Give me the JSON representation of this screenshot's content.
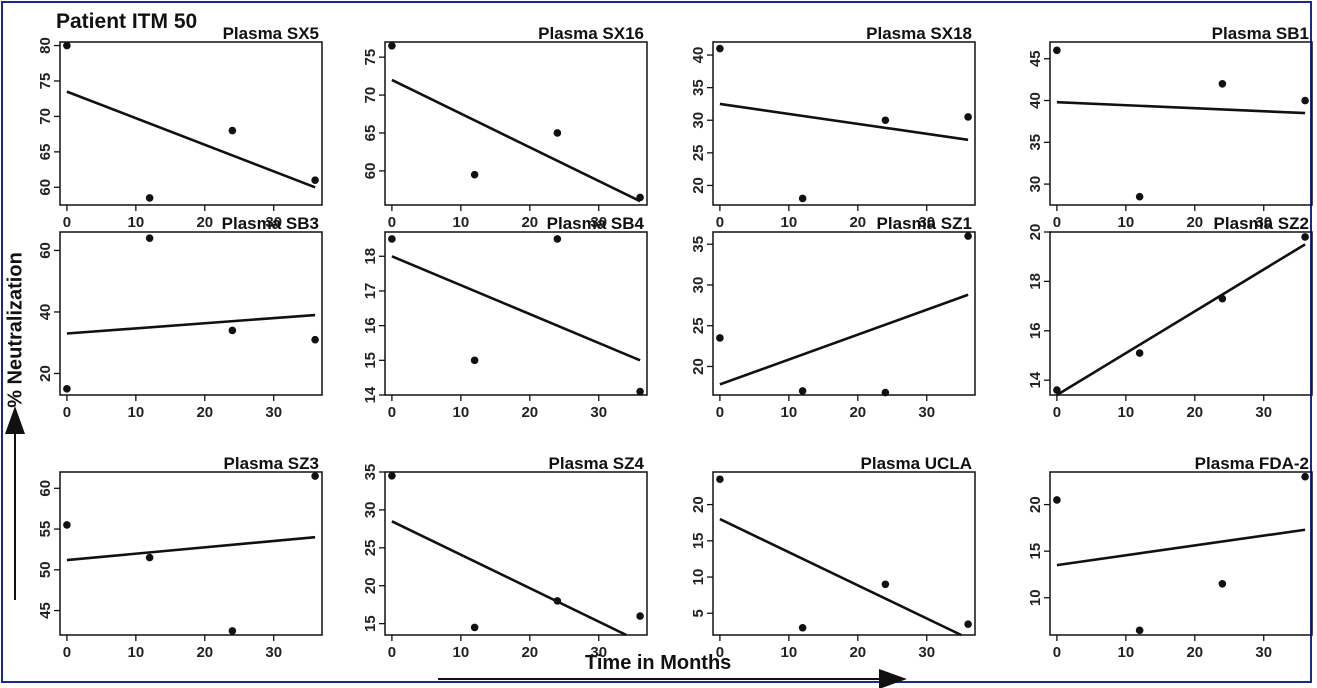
{
  "figure": {
    "title": "Patient ITM 50",
    "ylabel": "% Neutralization",
    "xlabel": "Time in Months",
    "colors": {
      "border": "#1b2a8a",
      "ink": "#111111"
    }
  },
  "chart_data": [
    {
      "type": "scatter",
      "title": "Plasma SX5",
      "x": [
        0,
        12,
        24,
        36
      ],
      "y": [
        80,
        58.5,
        68,
        61
      ],
      "fit": [
        [
          0,
          73.5
        ],
        [
          36,
          60
        ]
      ],
      "xlim": [
        -1,
        37
      ],
      "ylim": [
        57.5,
        80.5
      ],
      "xticks": [
        0,
        10,
        20,
        30
      ],
      "yticks": [
        60,
        65,
        70,
        75,
        80
      ]
    },
    {
      "type": "scatter",
      "title": "Plasma SX16",
      "x": [
        0,
        12,
        24,
        36
      ],
      "y": [
        76.5,
        59.5,
        65,
        56.5
      ],
      "fit": [
        [
          0,
          72
        ],
        [
          36,
          56
        ]
      ],
      "xlim": [
        -1,
        37
      ],
      "ylim": [
        55.5,
        77
      ],
      "xticks": [
        0,
        10,
        20,
        30
      ],
      "yticks": [
        60,
        65,
        70,
        75
      ]
    },
    {
      "type": "scatter",
      "title": "Plasma SX18",
      "x": [
        0,
        12,
        24,
        36
      ],
      "y": [
        41,
        18,
        30,
        30.5
      ],
      "fit": [
        [
          0,
          32.5
        ],
        [
          36,
          27
        ]
      ],
      "xlim": [
        -1,
        37
      ],
      "ylim": [
        17,
        42
      ],
      "xticks": [
        0,
        10,
        20,
        30
      ],
      "yticks": [
        20,
        25,
        30,
        35,
        40
      ]
    },
    {
      "type": "scatter",
      "title": "Plasma SB1",
      "x": [
        0,
        12,
        24,
        36
      ],
      "y": [
        46,
        28.5,
        42,
        40
      ],
      "fit": [
        [
          0,
          39.8
        ],
        [
          36,
          38.5
        ]
      ],
      "xlim": [
        -1,
        37
      ],
      "ylim": [
        27.5,
        47
      ],
      "xticks": [
        0,
        10,
        20,
        30
      ],
      "yticks": [
        30,
        35,
        40,
        45
      ]
    },
    {
      "type": "scatter",
      "title": "Plasma SB3",
      "x": [
        0,
        12,
        24,
        36
      ],
      "y": [
        15,
        64,
        34,
        31
      ],
      "fit": [
        [
          0,
          33
        ],
        [
          36,
          39
        ]
      ],
      "xlim": [
        -1,
        37
      ],
      "ylim": [
        13,
        66
      ],
      "xticks": [
        0,
        10,
        20,
        30
      ],
      "yticks": [
        20,
        40,
        60
      ]
    },
    {
      "type": "scatter",
      "title": "Plasma SB4",
      "x": [
        0,
        12,
        24,
        36
      ],
      "y": [
        18.5,
        15,
        18.5,
        14.1
      ],
      "fit": [
        [
          0,
          18
        ],
        [
          36,
          15
        ]
      ],
      "xlim": [
        -1,
        37
      ],
      "ylim": [
        14,
        18.7
      ],
      "xticks": [
        0,
        10,
        20,
        30
      ],
      "yticks": [
        14,
        15,
        16,
        17,
        18
      ]
    },
    {
      "type": "scatter",
      "title": "Plasma SZ1",
      "x": [
        0,
        12,
        24,
        36
      ],
      "y": [
        23.5,
        17,
        16.8,
        36
      ],
      "fit": [
        [
          0,
          17.8
        ],
        [
          36,
          28.8
        ]
      ],
      "xlim": [
        -1,
        37
      ],
      "ylim": [
        16.5,
        36.5
      ],
      "xticks": [
        0,
        10,
        20,
        30
      ],
      "yticks": [
        20,
        25,
        30,
        35
      ]
    },
    {
      "type": "scatter",
      "title": "Plasma SZ2",
      "x": [
        0,
        12,
        24,
        36
      ],
      "y": [
        13.6,
        15.1,
        17.3,
        19.8
      ],
      "fit": [
        [
          0,
          13.4
        ],
        [
          36,
          19.5
        ]
      ],
      "xlim": [
        -1,
        37
      ],
      "ylim": [
        13.4,
        20
      ],
      "xticks": [
        0,
        10,
        20,
        30
      ],
      "yticks": [
        14,
        16,
        18,
        20
      ]
    },
    {
      "type": "scatter",
      "title": "Plasma SZ3",
      "x": [
        0,
        12,
        24,
        36
      ],
      "y": [
        55.5,
        51.5,
        42.5,
        61.5
      ],
      "fit": [
        [
          0,
          51.2
        ],
        [
          36,
          54
        ]
      ],
      "xlim": [
        -1,
        37
      ],
      "ylim": [
        42,
        62
      ],
      "xticks": [
        0,
        10,
        20,
        30
      ],
      "yticks": [
        45,
        50,
        55,
        60
      ]
    },
    {
      "type": "scatter",
      "title": "Plasma SZ4",
      "x": [
        0,
        12,
        24,
        36
      ],
      "y": [
        34.5,
        14.5,
        18,
        16
      ],
      "fit": [
        [
          0,
          28.5
        ],
        [
          34,
          13.5
        ]
      ],
      "xlim": [
        -1,
        37
      ],
      "ylim": [
        13.5,
        35
      ],
      "xticks": [
        0,
        10,
        20,
        30
      ],
      "yticks": [
        15,
        20,
        25,
        30,
        35
      ]
    },
    {
      "type": "scatter",
      "title": "Plasma UCLA",
      "x": [
        0,
        12,
        24,
        36
      ],
      "y": [
        23.5,
        3,
        9,
        3.5
      ],
      "fit": [
        [
          0,
          18
        ],
        [
          35,
          2
        ]
      ],
      "xlim": [
        -1,
        37
      ],
      "ylim": [
        2,
        24.5
      ],
      "xticks": [
        0,
        10,
        20,
        30
      ],
      "yticks": [
        5,
        10,
        15,
        20
      ]
    },
    {
      "type": "scatter",
      "title": "Plasma FDA-2",
      "x": [
        0,
        12,
        24,
        36
      ],
      "y": [
        20.5,
        6.5,
        11.5,
        23
      ],
      "fit": [
        [
          0,
          13.5
        ],
        [
          36,
          17.3
        ]
      ],
      "xlim": [
        -1,
        37
      ],
      "ylim": [
        6,
        23.5
      ],
      "xticks": [
        0,
        10,
        20,
        30
      ],
      "yticks": [
        10,
        15,
        20
      ]
    }
  ]
}
